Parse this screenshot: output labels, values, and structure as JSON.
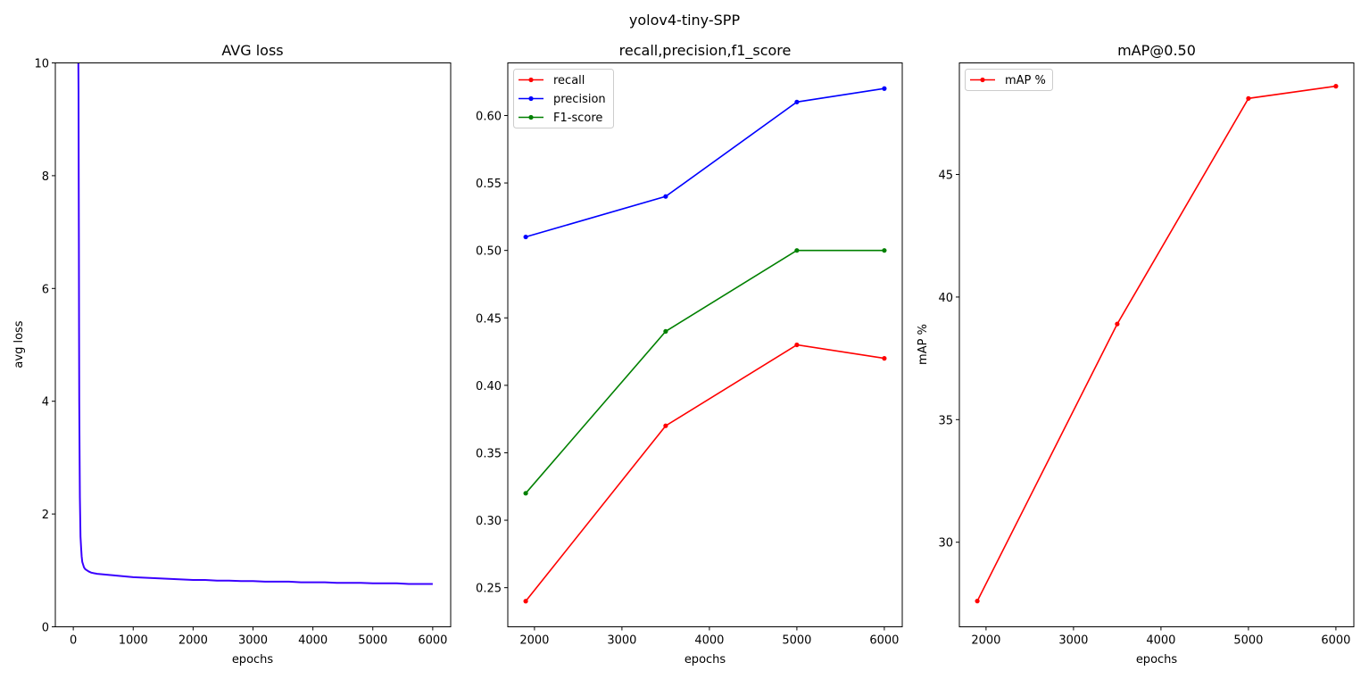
{
  "figure_title": "yolov4-tiny-SPP",
  "chart_data": [
    {
      "type": "line",
      "title": "AVG loss",
      "xlabel": "epochs",
      "ylabel": "avg loss",
      "xlim": [
        -300,
        6300
      ],
      "ylim": [
        0,
        10
      ],
      "xticks": [
        0,
        1000,
        2000,
        3000,
        4000,
        5000,
        6000
      ],
      "yticks": [
        0,
        2,
        4,
        6,
        8,
        10
      ],
      "grid": false,
      "legend": null,
      "series": [
        {
          "color": "#3a00ff",
          "x": [
            85,
            88,
            91,
            94,
            97,
            100,
            105,
            110,
            115,
            120,
            130,
            140,
            150,
            165,
            180,
            200,
            230,
            260,
            300,
            350,
            400,
            500,
            600,
            700,
            800,
            900,
            1000,
            1200,
            1400,
            1600,
            1800,
            2000,
            2200,
            2400,
            2600,
            2800,
            3000,
            3200,
            3400,
            3600,
            3800,
            4000,
            4200,
            4400,
            4600,
            4800,
            5000,
            5200,
            5400,
            5600,
            5800,
            6000
          ],
          "y": [
            10,
            9.5,
            8,
            6.8,
            5.2,
            4.0,
            3.0,
            2.3,
            1.9,
            1.6,
            1.4,
            1.25,
            1.15,
            1.1,
            1.05,
            1.02,
            1.0,
            0.98,
            0.96,
            0.95,
            0.94,
            0.93,
            0.92,
            0.91,
            0.9,
            0.89,
            0.88,
            0.87,
            0.86,
            0.85,
            0.84,
            0.83,
            0.83,
            0.82,
            0.82,
            0.81,
            0.81,
            0.8,
            0.8,
            0.8,
            0.79,
            0.79,
            0.79,
            0.78,
            0.78,
            0.78,
            0.77,
            0.77,
            0.77,
            0.76,
            0.76,
            0.76
          ]
        }
      ]
    },
    {
      "type": "line",
      "title": "recall,precision,f1_score",
      "xlabel": "epochs",
      "ylabel": "",
      "xlim": [
        1695,
        6205
      ],
      "ylim": [
        0.221,
        0.639
      ],
      "xticks": [
        2000,
        3000,
        4000,
        5000,
        6000
      ],
      "yticks": [
        0.25,
        0.3,
        0.35,
        0.4,
        0.45,
        0.5,
        0.55,
        0.6
      ],
      "ytick_labels": [
        "0.25",
        "0.30",
        "0.35",
        "0.40",
        "0.45",
        "0.50",
        "0.55",
        "0.60"
      ],
      "grid": false,
      "legend": "top-left",
      "x": [
        1900,
        3500,
        5000,
        6000
      ],
      "series": [
        {
          "name": "recall",
          "color": "#ff0000",
          "values": [
            0.24,
            0.37,
            0.43,
            0.42
          ]
        },
        {
          "name": "precision",
          "color": "#0000ff",
          "values": [
            0.51,
            0.54,
            0.61,
            0.62
          ]
        },
        {
          "name": "F1-score",
          "color": "#008000",
          "values": [
            0.32,
            0.44,
            0.5,
            0.5
          ]
        }
      ]
    },
    {
      "type": "line",
      "title": "mAP@0.50",
      "xlabel": "epochs",
      "ylabel": "mAP %",
      "xlim": [
        1695,
        6205
      ],
      "ylim": [
        26.55,
        49.55
      ],
      "xticks": [
        2000,
        3000,
        4000,
        5000,
        6000
      ],
      "yticks": [
        30,
        35,
        40,
        45
      ],
      "grid": false,
      "legend": "top-left",
      "x": [
        1900,
        3500,
        5000,
        6000
      ],
      "series": [
        {
          "name": "mAP %",
          "color": "#ff0000",
          "values": [
            27.6,
            38.9,
            48.1,
            48.6
          ]
        }
      ]
    }
  ]
}
